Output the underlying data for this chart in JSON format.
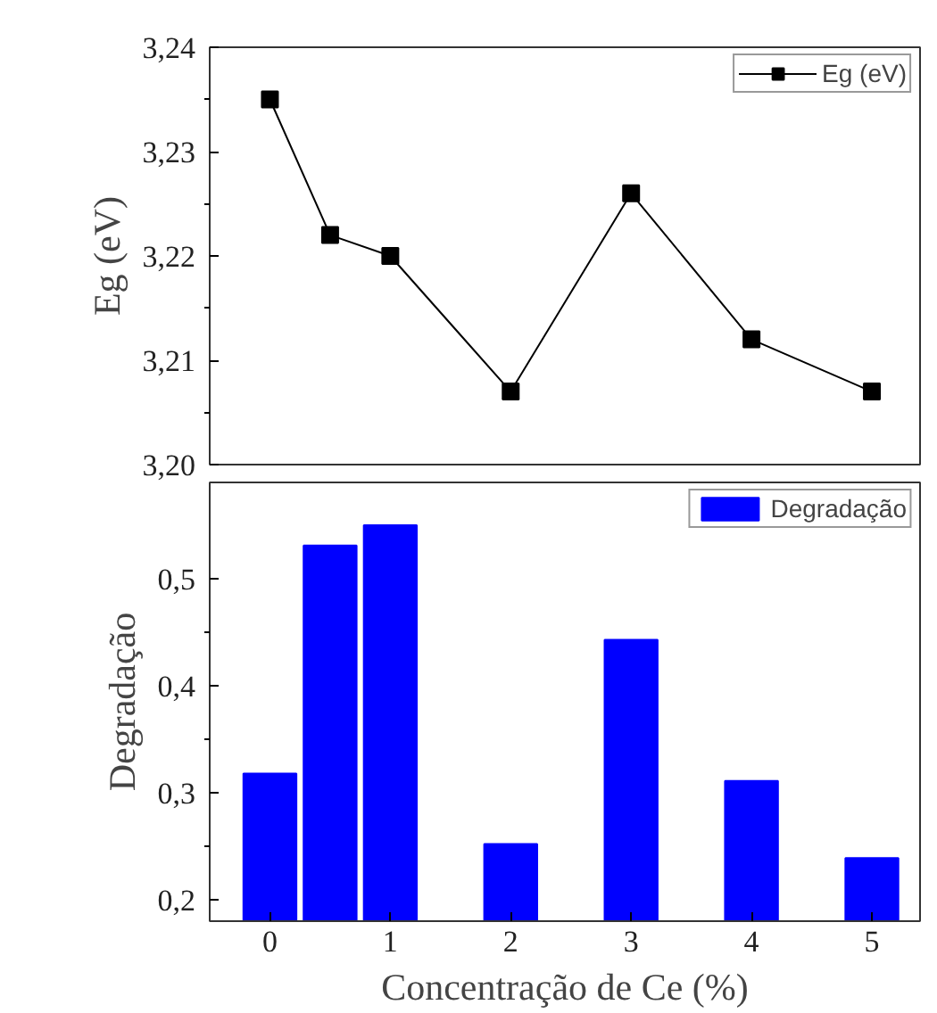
{
  "chart_data": [
    {
      "type": "line",
      "ylabel": "Eg (eV)",
      "x": [
        0,
        0.5,
        1,
        2,
        3,
        4,
        5
      ],
      "xlim": [
        -0.5,
        5.4
      ],
      "ylim": [
        3.2,
        3.24
      ],
      "yticks": [
        {
          "value": 3.2,
          "label": "3,20"
        },
        {
          "value": 3.21,
          "label": "3,21"
        },
        {
          "value": 3.22,
          "label": "3,22"
        },
        {
          "value": 3.23,
          "label": "3,23"
        },
        {
          "value": 3.24,
          "label": "3,24"
        }
      ],
      "tick_labels": "y",
      "marker": "square",
      "legend": "top right",
      "grid": false,
      "series": [
        {
          "name": "Eg (eV)",
          "color": "#000000",
          "values": [
            3.235,
            3.222,
            3.22,
            3.207,
            3.226,
            3.212,
            3.207
          ]
        }
      ]
    },
    {
      "type": "bar",
      "xlabel": "Concentração de Ce (%)",
      "ylabel": "Degradação",
      "x": [
        0,
        0.5,
        1,
        2,
        3,
        4,
        5
      ],
      "xlim": [
        -0.5,
        5.4
      ],
      "xticks": [
        0,
        1,
        2,
        3,
        4,
        5
      ],
      "ylim": [
        0.18,
        0.59
      ],
      "yticks": [
        {
          "value": 0.2,
          "label": "0,2"
        },
        {
          "value": 0.3,
          "label": "0,3"
        },
        {
          "value": 0.4,
          "label": "0,4"
        },
        {
          "value": 0.5,
          "label": "0,5"
        }
      ],
      "legend": "top right",
      "grid": false,
      "series": [
        {
          "name": "Degradação",
          "color": "#0000ff",
          "values": [
            0.318,
            0.531,
            0.55,
            0.252,
            0.443,
            0.311,
            0.239
          ]
        }
      ]
    }
  ]
}
